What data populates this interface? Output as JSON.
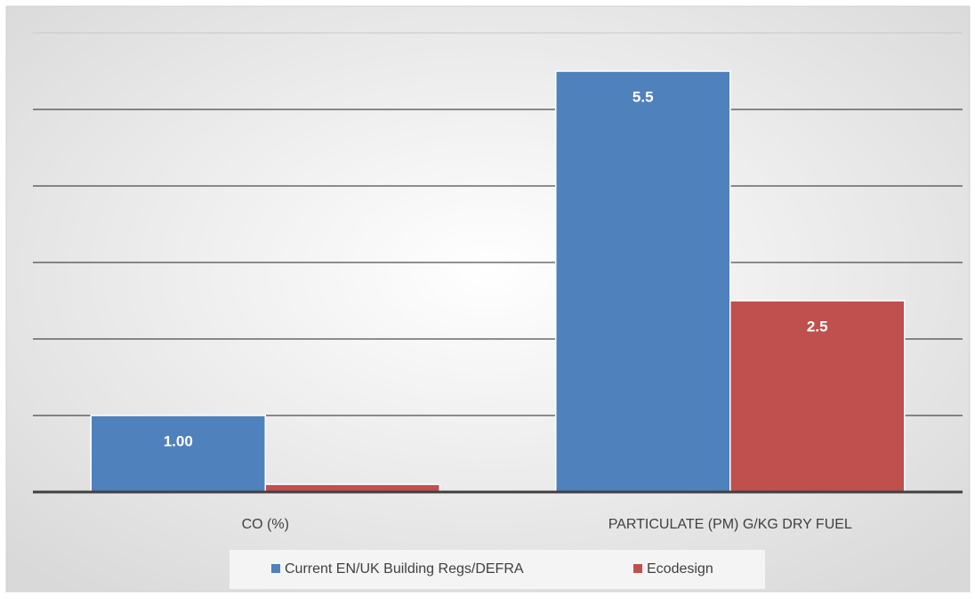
{
  "chart_data": {
    "type": "bar",
    "categories": [
      "CO (%)",
      "PARTICULATE (PM) G/KG DRY FUEL"
    ],
    "series": [
      {
        "name": "Current EN/UK Building Regs/DEFRA",
        "color": "#4f81bd",
        "values": [
          1,
          5.5
        ],
        "value_labels": [
          "1.00",
          "5.5"
        ]
      },
      {
        "name": "Ecodesign",
        "color": "#c0504d",
        "values": [
          0.1,
          2.5
        ],
        "value_labels": [
          null,
          "2.5"
        ]
      }
    ],
    "ylim": [
      0,
      6
    ],
    "yticks": [
      0,
      1,
      2,
      3,
      4,
      5,
      6
    ],
    "grid": true,
    "legend": "bottom"
  }
}
